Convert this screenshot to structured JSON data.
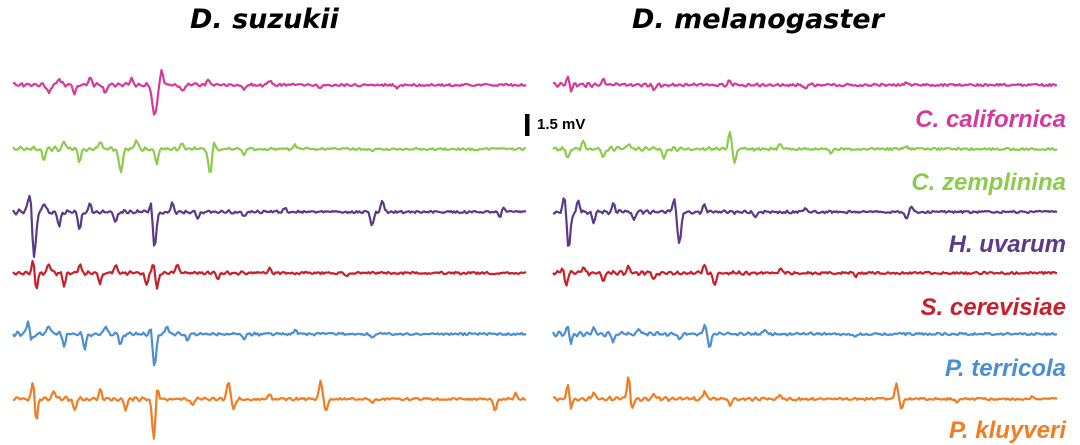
{
  "panels": {
    "left_title": "D. suzukii",
    "right_title": "D. melanogaster"
  },
  "scale_bar": {
    "label": "1.5 mV"
  },
  "traces": [
    {
      "label": "C. californica",
      "color": "#d6399e"
    },
    {
      "label": "C. zemplinina",
      "color": "#8ccc4d"
    },
    {
      "label": "H. uvarum",
      "color": "#5b3a8a"
    },
    {
      "label": "S. cerevisiae",
      "color": "#c8202a"
    },
    {
      "label": "P. terricola",
      "color": "#4a8fd1"
    },
    {
      "label": "P. kluyveri",
      "color": "#ef7d23"
    }
  ]
}
